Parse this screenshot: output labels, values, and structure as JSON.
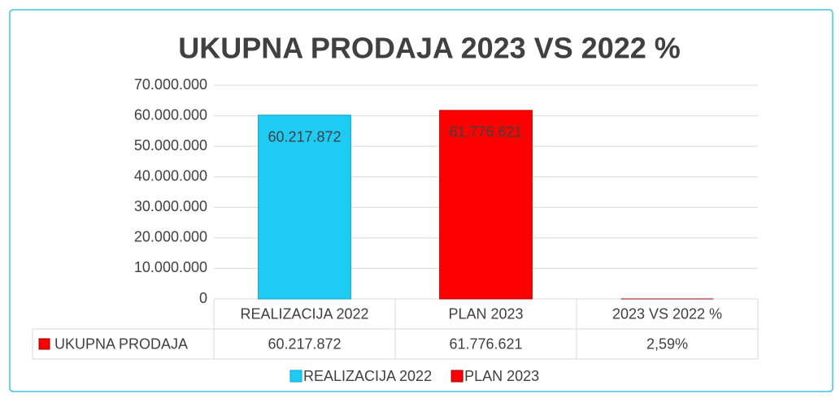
{
  "chart_data": {
    "type": "bar",
    "title": "UKUPNA PRODAJA 2023 VS 2022 %",
    "categories": [
      "REALIZACIJA 2022",
      "PLAN 2023",
      "2023 VS 2022 %"
    ],
    "series": [
      {
        "name": "UKUPNA PRODAJA",
        "color": "#ff0000",
        "colors": [
          "#1ecbf5",
          "#ff0000",
          "#ff0000"
        ],
        "values": [
          60217872,
          61776621,
          2.59
        ],
        "value_labels": [
          "60.217.872",
          "61.776.621",
          "2,59%"
        ]
      }
    ],
    "ylim": [
      0,
      70000000
    ],
    "yticks": [
      0,
      {
        "value": 10000000,
        "label": "10.000.000"
      },
      {
        "value": 20000000,
        "label": "20.000.000"
      },
      {
        "value": 30000000,
        "label": "30.000.000"
      },
      {
        "value": 40000000,
        "label": "40.000.000"
      },
      {
        "value": 50000000,
        "label": "50.000.000"
      },
      {
        "value": 60000000,
        "label": "60.000.000"
      },
      {
        "value": 70000000,
        "label": "70.000.000"
      }
    ],
    "grid": true
  }
}
